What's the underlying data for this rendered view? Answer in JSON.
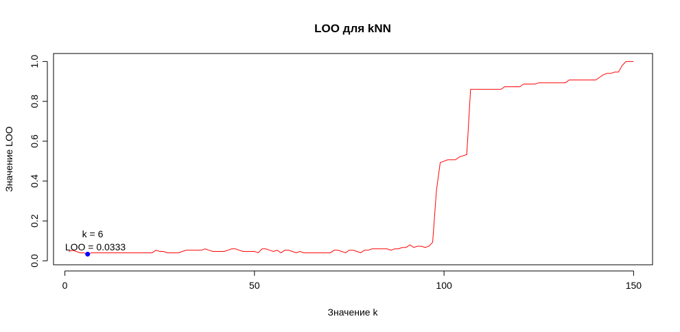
{
  "chart_data": {
    "type": "line",
    "title": "LOO для kNN",
    "xlabel": "Значение k",
    "ylabel": "Значение LOO",
    "xlim": [
      -3,
      155
    ],
    "ylim": [
      -0.02,
      1.04
    ],
    "xticks": [
      0,
      50,
      100,
      150
    ],
    "xtick_labels": [
      "0",
      "50",
      "100",
      "150"
    ],
    "yticks": [
      0.0,
      0.2,
      0.4,
      0.6,
      0.8,
      1.0
    ],
    "ytick_labels": [
      "0.0",
      "0.2",
      "0.4",
      "0.6",
      "0.8",
      "1.0"
    ],
    "grid": false,
    "series": [
      {
        "color": "#ff0000",
        "points": [
          [
            1,
            0.047
          ],
          [
            2,
            0.053
          ],
          [
            3,
            0.047
          ],
          [
            4,
            0.04
          ],
          [
            5,
            0.04
          ],
          [
            6,
            0.0333
          ],
          [
            7,
            0.04
          ],
          [
            8,
            0.04
          ],
          [
            10,
            0.04
          ],
          [
            15,
            0.04
          ],
          [
            20,
            0.04
          ],
          [
            23,
            0.04
          ],
          [
            24,
            0.053
          ],
          [
            25,
            0.047
          ],
          [
            26,
            0.047
          ],
          [
            27,
            0.04
          ],
          [
            28,
            0.04
          ],
          [
            30,
            0.04
          ],
          [
            31,
            0.047
          ],
          [
            32,
            0.053
          ],
          [
            33,
            0.053
          ],
          [
            35,
            0.053
          ],
          [
            36,
            0.053
          ],
          [
            37,
            0.06
          ],
          [
            38,
            0.053
          ],
          [
            39,
            0.047
          ],
          [
            40,
            0.047
          ],
          [
            41,
            0.047
          ],
          [
            42,
            0.047
          ],
          [
            43,
            0.053
          ],
          [
            44,
            0.06
          ],
          [
            45,
            0.06
          ],
          [
            46,
            0.053
          ],
          [
            47,
            0.047
          ],
          [
            48,
            0.047
          ],
          [
            49,
            0.047
          ],
          [
            50,
            0.047
          ],
          [
            51,
            0.04
          ],
          [
            52,
            0.06
          ],
          [
            53,
            0.06
          ],
          [
            54,
            0.053
          ],
          [
            55,
            0.047
          ],
          [
            56,
            0.053
          ],
          [
            57,
            0.04
          ],
          [
            58,
            0.053
          ],
          [
            59,
            0.053
          ],
          [
            60,
            0.047
          ],
          [
            61,
            0.04
          ],
          [
            62,
            0.047
          ],
          [
            63,
            0.04
          ],
          [
            65,
            0.04
          ],
          [
            70,
            0.04
          ],
          [
            71,
            0.053
          ],
          [
            72,
            0.053
          ],
          [
            73,
            0.047
          ],
          [
            74,
            0.04
          ],
          [
            75,
            0.053
          ],
          [
            76,
            0.053
          ],
          [
            77,
            0.047
          ],
          [
            78,
            0.04
          ],
          [
            79,
            0.053
          ],
          [
            80,
            0.053
          ],
          [
            81,
            0.06
          ],
          [
            82,
            0.06
          ],
          [
            83,
            0.06
          ],
          [
            84,
            0.06
          ],
          [
            85,
            0.06
          ],
          [
            86,
            0.053
          ],
          [
            87,
            0.06
          ],
          [
            88,
            0.06
          ],
          [
            89,
            0.067
          ],
          [
            90,
            0.067
          ],
          [
            91,
            0.08
          ],
          [
            92,
            0.067
          ],
          [
            93,
            0.073
          ],
          [
            94,
            0.073
          ],
          [
            95,
            0.067
          ],
          [
            96,
            0.073
          ],
          [
            97,
            0.093
          ],
          [
            98,
            0.353
          ],
          [
            99,
            0.493
          ],
          [
            100,
            0.5
          ],
          [
            101,
            0.507
          ],
          [
            102,
            0.507
          ],
          [
            103,
            0.507
          ],
          [
            104,
            0.52
          ],
          [
            105,
            0.527
          ],
          [
            106,
            0.533
          ],
          [
            107,
            0.86
          ],
          [
            108,
            0.86
          ],
          [
            110,
            0.86
          ],
          [
            115,
            0.86
          ],
          [
            116,
            0.873
          ],
          [
            120,
            0.873
          ],
          [
            121,
            0.887
          ],
          [
            124,
            0.887
          ],
          [
            125,
            0.893
          ],
          [
            132,
            0.893
          ],
          [
            133,
            0.907
          ],
          [
            140,
            0.907
          ],
          [
            141,
            0.92
          ],
          [
            142,
            0.933
          ],
          [
            143,
            0.94
          ],
          [
            144,
            0.94
          ],
          [
            145,
            0.947
          ],
          [
            146,
            0.947
          ],
          [
            147,
            0.98
          ],
          [
            148,
            1.0
          ],
          [
            150,
            1.0
          ]
        ]
      }
    ],
    "highlight": {
      "x": 6,
      "y": 0.0333,
      "color": "#0000ff"
    },
    "annotations": {
      "k_text": "k =  6",
      "loo_text": "LOO =  0.0333"
    }
  }
}
